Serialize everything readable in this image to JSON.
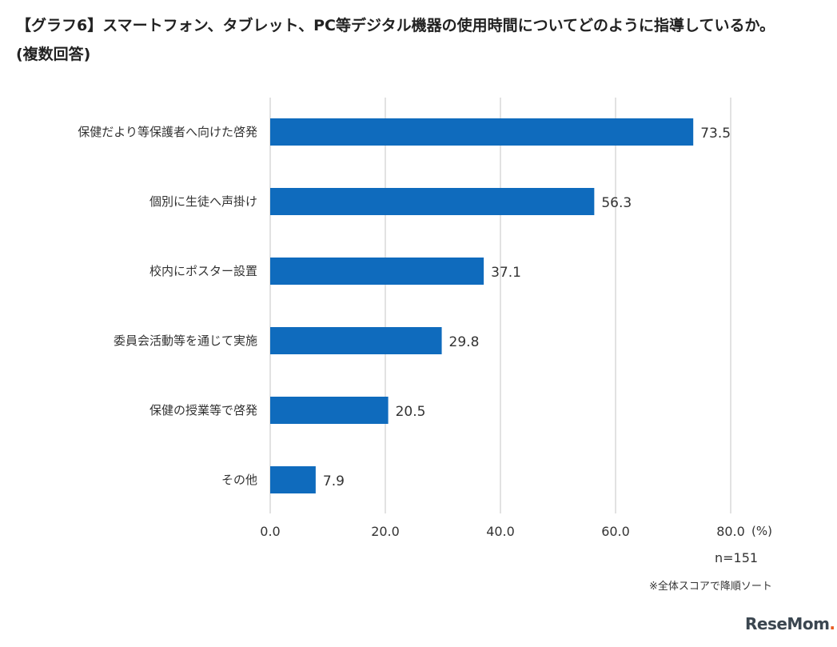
{
  "title_line1": "【グラフ6】スマートフォン、タブレット、PC等デジタル機器の使用時間についてどのように指導しているか。",
  "title_line2": "(複数回答)",
  "chart_data": {
    "type": "bar",
    "orientation": "horizontal",
    "categories": [
      "保健だより等保護者へ向けた啓発",
      "個別に生徒へ声掛け",
      "校内にポスター設置",
      "委員会活動等を通じて実施",
      "保健の授業等で啓発",
      "その他"
    ],
    "values": [
      73.5,
      56.3,
      37.1,
      29.8,
      20.5,
      7.9
    ],
    "value_labels": [
      "73.5",
      "56.3",
      "37.1",
      "29.8",
      "20.5",
      "7.9"
    ],
    "xlim": [
      0,
      80
    ],
    "ticks": [
      0,
      20,
      40,
      60,
      80
    ],
    "tick_labels": [
      "0.0",
      "20.0",
      "40.0",
      "60.0",
      "80.0"
    ],
    "unit": "(%)",
    "grid": "vertical",
    "bar_color": "#0f6bbd",
    "grid_color": "#d9d9d9"
  },
  "notes": {
    "n": "n=151",
    "sort": "※全体スコアで降順ソート"
  },
  "logo": {
    "text_main": "ReseMom",
    "text_dot": "."
  }
}
